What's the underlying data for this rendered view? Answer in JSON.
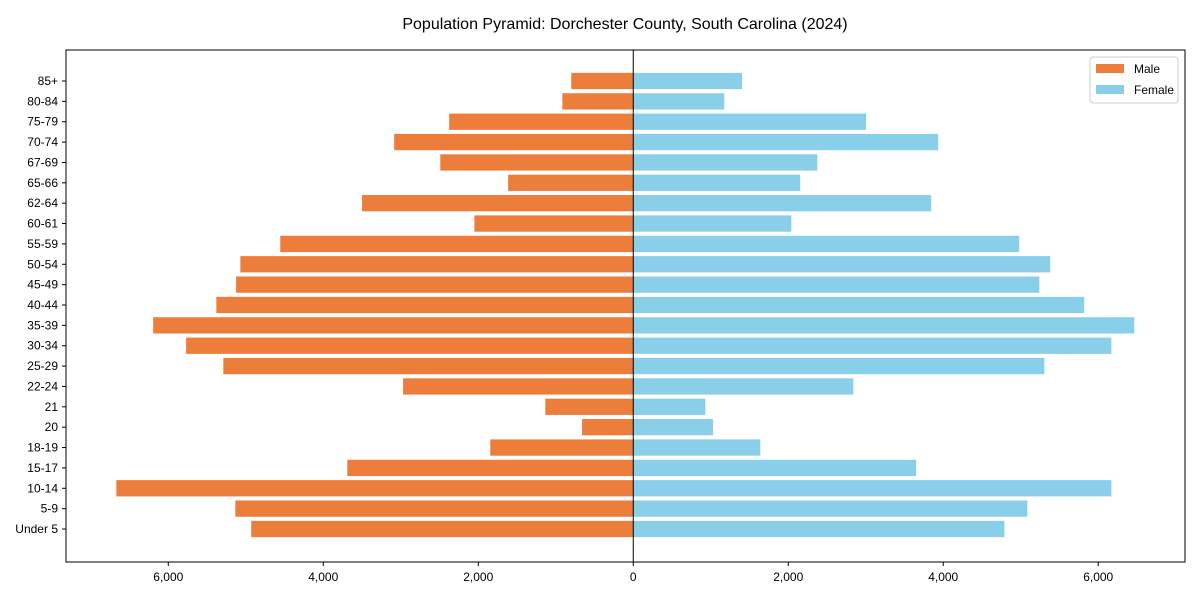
{
  "chart_data": {
    "type": "bar",
    "orientation": "horizontal",
    "title": "Population Pyramid: Dorchester County, South Carolina (2024)",
    "xlabel": "",
    "ylabel": "",
    "xlim": [
      -7320,
      7120
    ],
    "xticks": [
      -6000,
      -4000,
      -2000,
      0,
      2000,
      4000,
      6000
    ],
    "xtick_labels": [
      "6,000",
      "4,000",
      "2,000",
      "0",
      "2,000",
      "4,000",
      "6,000"
    ],
    "grid": false,
    "legend_position": "top-right",
    "categories": [
      "Under 5",
      "5-9",
      "10-14",
      "15-17",
      "18-19",
      "20",
      "21",
      "22-24",
      "25-29",
      "30-34",
      "35-39",
      "40-44",
      "45-49",
      "50-54",
      "55-59",
      "60-61",
      "62-64",
      "65-66",
      "67-69",
      "70-74",
      "75-79",
      "80-84",
      "85+"
    ],
    "series": [
      {
        "name": "Male",
        "color": "#ED7D3A",
        "side": "left",
        "values": [
          4930,
          5135,
          6670,
          3690,
          1845,
          660,
          1135,
          2970,
          5290,
          5770,
          6195,
          5380,
          5125,
          5070,
          4555,
          2050,
          3500,
          1615,
          2490,
          3085,
          2375,
          915,
          800
        ]
      },
      {
        "name": "Female",
        "color": "#89CFEA",
        "side": "right",
        "values": [
          4790,
          5085,
          6170,
          3650,
          1640,
          1030,
          930,
          2840,
          5305,
          6170,
          6465,
          5820,
          5240,
          5380,
          4980,
          2040,
          3845,
          2155,
          2375,
          3935,
          3005,
          1175,
          1405
        ]
      }
    ]
  }
}
